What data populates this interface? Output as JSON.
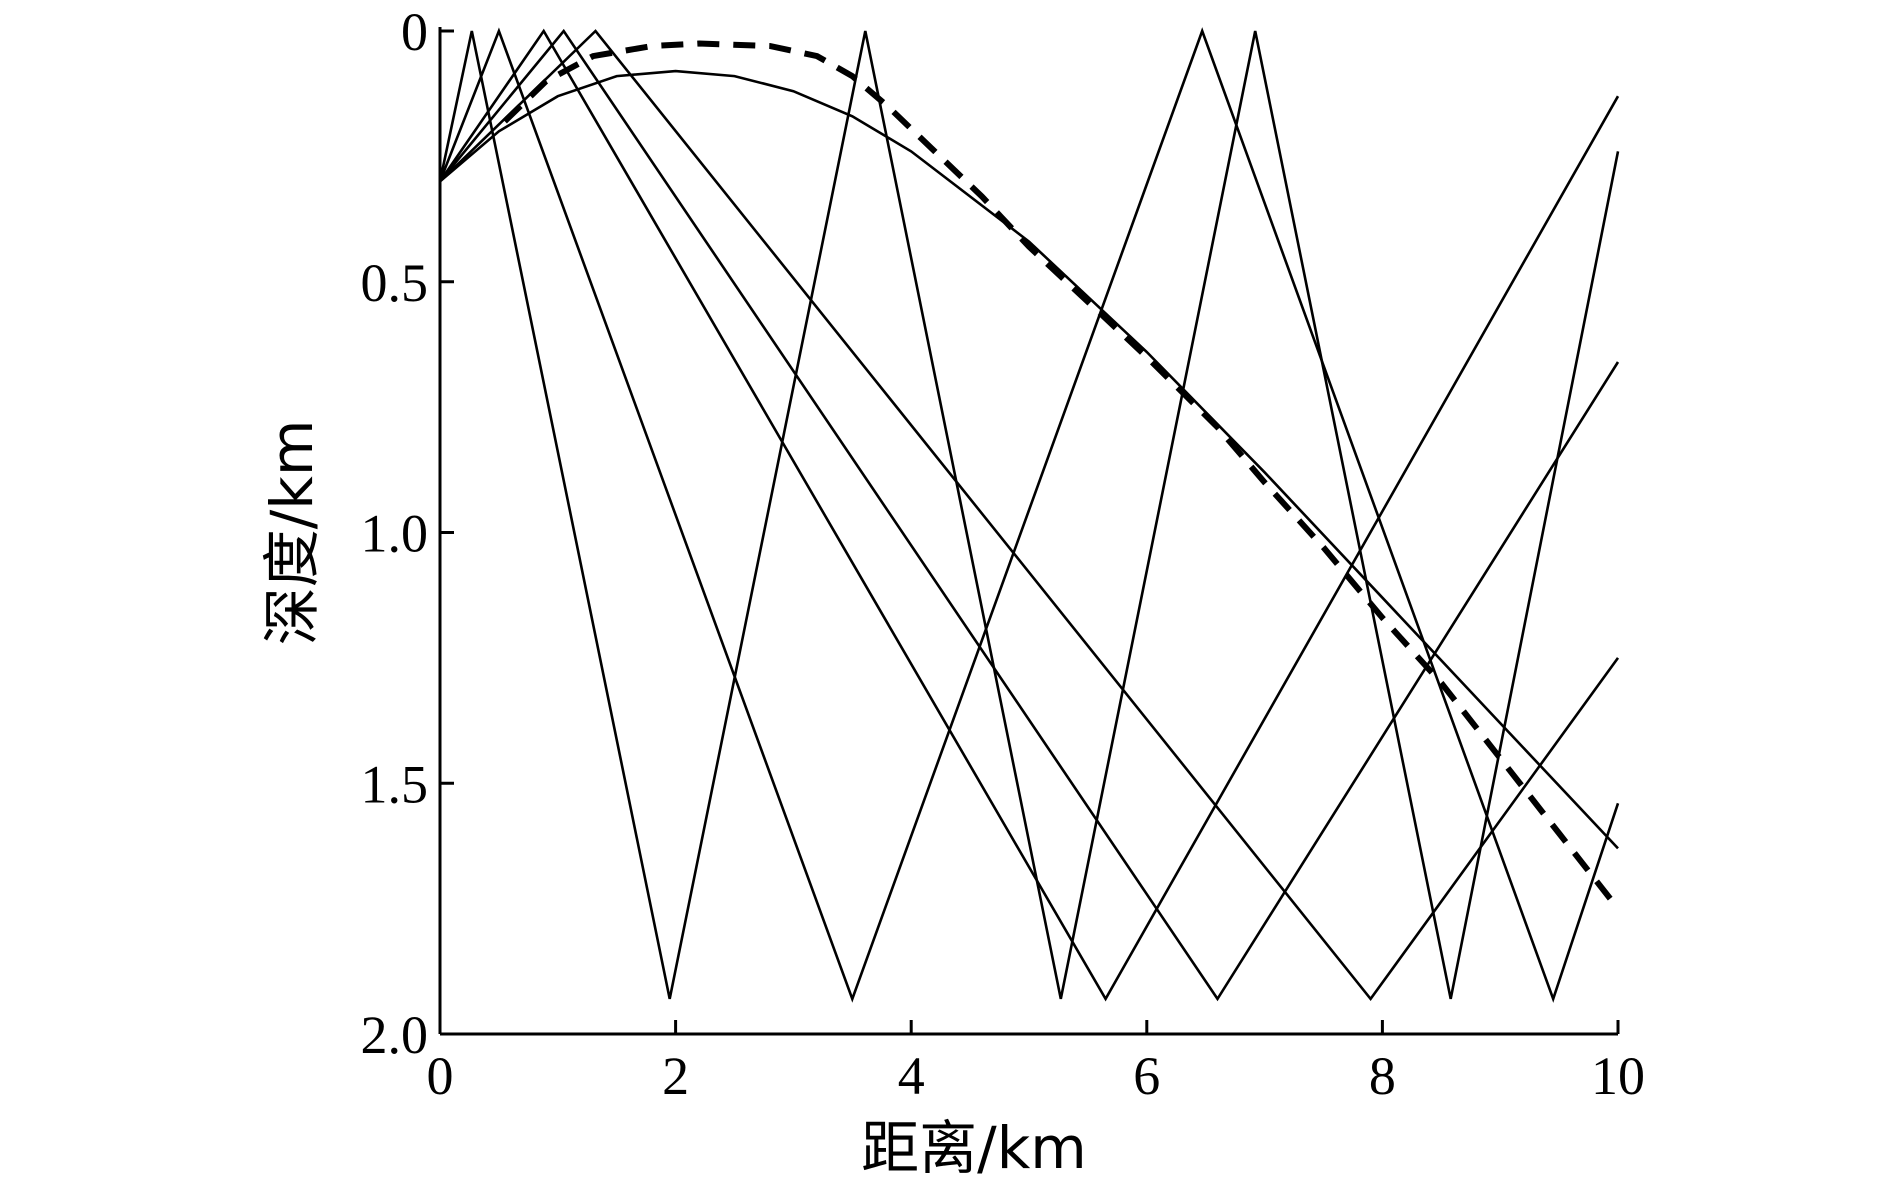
{
  "chart_data": {
    "type": "line",
    "title": "",
    "xlabel": "距离/km",
    "ylabel": "深度/km",
    "xlim": [
      0,
      10
    ],
    "ylim": [
      2.0,
      0
    ],
    "y_inverted": true,
    "grid": false,
    "legend": "none",
    "x_ticks": [
      0,
      2,
      4,
      6,
      8,
      10
    ],
    "x_tick_labels": [
      "0",
      "2",
      "4",
      "6",
      "8",
      "10"
    ],
    "y_ticks": [
      0,
      0.5,
      1.0,
      1.5,
      2.0
    ],
    "y_tick_labels": [
      "0",
      "0.5",
      "1.0",
      "1.5",
      "2.0"
    ],
    "colors": {
      "ray": "#000000",
      "dashed": "#000000",
      "axis": "#000000"
    },
    "series": [
      {
        "style": "solid",
        "x": [
          0,
          0.27,
          1.95,
          3.61,
          5.27,
          6.92,
          8.58,
          10.0
        ],
        "y": [
          0.3,
          0,
          1.93,
          0,
          1.93,
          0,
          1.93,
          0.24
        ]
      },
      {
        "style": "solid",
        "x": [
          0,
          0.5,
          3.5,
          6.47,
          9.45,
          10.0
        ],
        "y": [
          0.3,
          0,
          1.93,
          0,
          1.93,
          1.54
        ]
      },
      {
        "style": "solid",
        "x": [
          0,
          0.88,
          5.65,
          10.0
        ],
        "y": [
          0.3,
          0,
          1.93,
          0.13
        ]
      },
      {
        "style": "solid",
        "x": [
          0,
          1.05,
          6.6,
          10.0
        ],
        "y": [
          0.3,
          0,
          1.93,
          0.66
        ]
      },
      {
        "style": "solid",
        "x": [
          0,
          1.32,
          7.9,
          10.0
        ],
        "y": [
          0.3,
          0,
          1.93,
          1.25
        ]
      },
      {
        "style": "solid",
        "x": [
          0,
          0.5,
          1.0,
          1.5,
          2.0,
          2.5,
          3.0,
          3.5,
          4.0,
          5.0,
          6.0,
          7.0,
          8.0,
          9.0,
          10.0
        ],
        "y": [
          0.3,
          0.2,
          0.13,
          0.09,
          0.08,
          0.09,
          0.12,
          0.17,
          0.24,
          0.42,
          0.64,
          0.88,
          1.13,
          1.38,
          1.63
        ]
      },
      {
        "style": "dashed",
        "x": [
          0.55,
          0.9,
          1.3,
          1.8,
          2.2,
          2.8,
          3.2,
          3.5,
          3.8,
          4.2,
          4.6,
          5.0,
          5.5,
          6.0,
          6.6,
          7.0,
          7.5,
          8.0,
          8.5,
          9.0,
          9.5,
          10.0
        ],
        "y": [
          0.18,
          0.1,
          0.05,
          0.03,
          0.025,
          0.03,
          0.05,
          0.09,
          0.15,
          0.24,
          0.33,
          0.43,
          0.54,
          0.65,
          0.79,
          0.9,
          1.03,
          1.17,
          1.3,
          1.45,
          1.6,
          1.75
        ]
      }
    ]
  }
}
